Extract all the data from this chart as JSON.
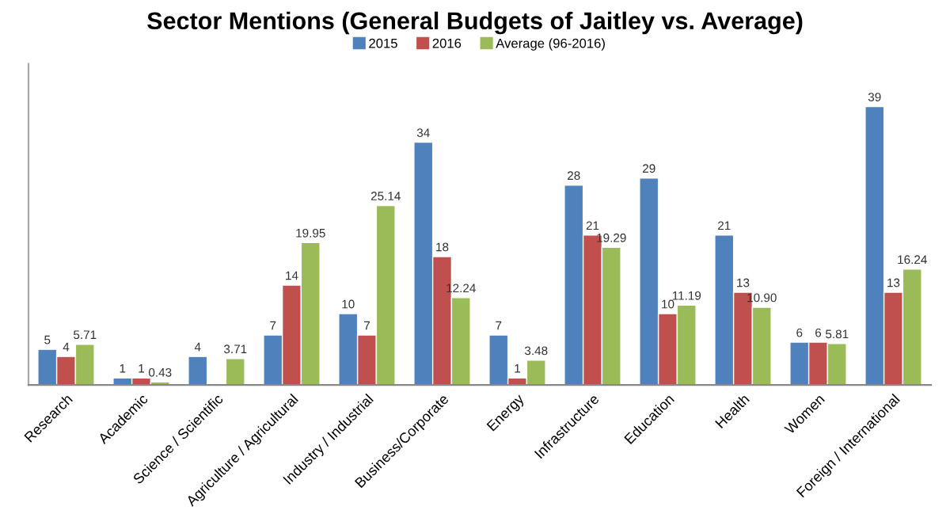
{
  "chart_data": {
    "type": "bar",
    "title": "Sector Mentions (General Budgets of Jaitley vs. Average)",
    "categories": [
      "Research",
      "Academic",
      "Science / Scientific",
      "Agriculture / Agricultural",
      "Industry / Industrial",
      "Business/Corporate",
      "Energy",
      "Infrastructure",
      "Education",
      "Health",
      "Women",
      "Foreign / International"
    ],
    "series": [
      {
        "name": "2015",
        "color": "#4f81bd",
        "values": [
          5,
          1,
          4,
          7,
          10,
          34,
          7,
          28,
          29,
          21,
          6,
          39
        ],
        "value_labels": [
          "5",
          "1",
          "4",
          "7",
          "10",
          "34",
          "7",
          "28",
          "29",
          "21",
          "6",
          "39"
        ]
      },
      {
        "name": "2016",
        "color": "#c0504d",
        "values": [
          4,
          1,
          null,
          14,
          7,
          18,
          1,
          21,
          10,
          13,
          6,
          13
        ],
        "value_labels": [
          "4",
          "1",
          null,
          "14",
          "7",
          "18",
          "1",
          "21",
          "10",
          "13",
          "6",
          "13"
        ]
      },
      {
        "name": "Average (96-2016)",
        "color": "#9bbb59",
        "values": [
          5.71,
          0.43,
          3.71,
          19.95,
          25.14,
          12.24,
          3.48,
          19.29,
          11.19,
          10.9,
          5.81,
          16.24
        ],
        "value_labels": [
          "5.71",
          "0.43",
          "3.71",
          "19.95",
          "25.14",
          "12.24",
          "3.48",
          "19.29",
          "11.19",
          "10.90",
          "5.81",
          "16.24"
        ]
      }
    ],
    "ylim": [
      0,
      45
    ],
    "tick_labels": "x",
    "grid": false,
    "legend": "top"
  }
}
